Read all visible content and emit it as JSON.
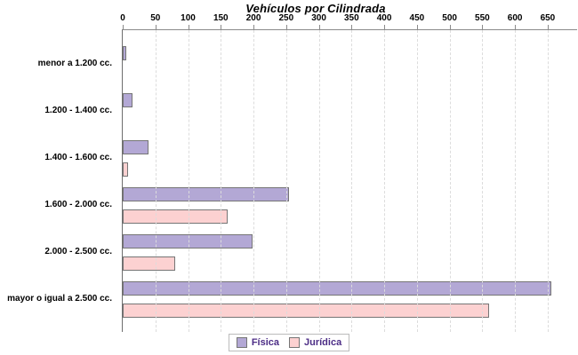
{
  "chart_data": {
    "type": "bar",
    "orientation": "horizontal",
    "title": "Vehículos por Cilindrada",
    "categories": [
      "menor a 1.200 cc.",
      "1.200 - 1.400 cc.",
      "1.400 - 1.600 cc.",
      "1.600 - 2.000 cc.",
      "2.000 - 2.500 cc.",
      "mayor o igual a 2.500 cc."
    ],
    "series": [
      {
        "name": "Física",
        "key": "fisica",
        "color": "#b3a8d5",
        "values": [
          5,
          15,
          40,
          255,
          198,
          655
        ]
      },
      {
        "name": "Jurídica",
        "key": "juridica",
        "color": "#fcd1d1",
        "values": [
          0,
          0,
          8,
          160,
          80,
          560
        ]
      }
    ],
    "x_axis": {
      "min": 0,
      "max": 695,
      "ticks": [
        0,
        50,
        100,
        150,
        200,
        250,
        300,
        350,
        400,
        450,
        500,
        550,
        600,
        650
      ]
    },
    "grid": "vertical-dashed",
    "legend_position": "bottom-center"
  },
  "colors": {
    "bar_border": "#757575",
    "axis_line": "#6e6e6e",
    "gridline": "#dcdcdc",
    "title_text": "#000000",
    "legend_text": "#4c2d86",
    "legend_border": "#bcbcbc",
    "background": "#ffffff"
  }
}
